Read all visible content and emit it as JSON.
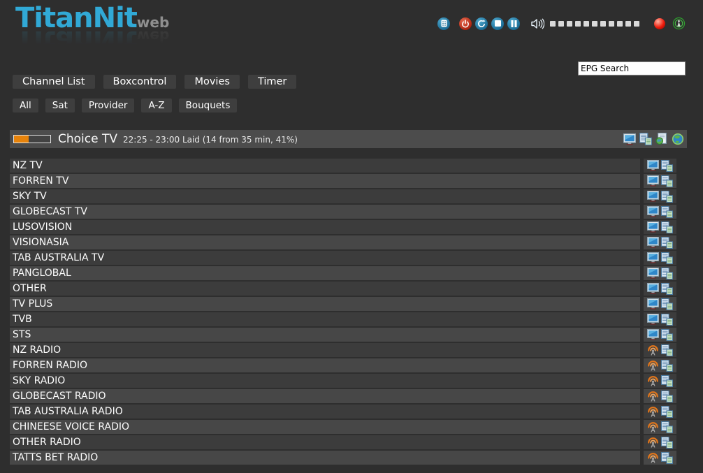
{
  "logo": {
    "title": "TitanNit",
    "suffix": "web"
  },
  "header_controls": {
    "icons": [
      "remote-icon",
      "power-icon",
      "restart-icon",
      "stop-icon",
      "pause-icon"
    ],
    "volume_icon": "speaker-icon",
    "volume_segments": 11,
    "record_icon": "record-ball-icon",
    "stream_icon": "stream-icon"
  },
  "search": {
    "value": "EPG Search"
  },
  "nav": {
    "items": [
      "Channel List",
      "Boxcontrol",
      "Movies",
      "Timer"
    ]
  },
  "filters": {
    "items": [
      "All",
      "Sat",
      "Provider",
      "A-Z",
      "Bouquets"
    ]
  },
  "now_playing": {
    "channel": "Choice TV",
    "epg_info": "22:25 - 23:00 Laid (14 from 35 min, 41%)",
    "progress_percent": 41,
    "icons": [
      "tv-icon",
      "epg-list-icon",
      "epg-page-icon",
      "globe-icon"
    ]
  },
  "colors": {
    "accent_blue": "#31a9d6",
    "progress_orange": "#e8830a",
    "record_red": "#ee1c0c",
    "stream_green": "#3fae3f",
    "background": "#2e2e2e"
  },
  "channels": [
    {
      "name": "NZ TV",
      "type": "tv"
    },
    {
      "name": "FORREN TV",
      "type": "tv"
    },
    {
      "name": "SKY TV",
      "type": "tv"
    },
    {
      "name": "GLOBECAST TV",
      "type": "tv"
    },
    {
      "name": "LUSOVISION",
      "type": "tv"
    },
    {
      "name": "VISIONASIA",
      "type": "tv"
    },
    {
      "name": "TAB AUSTRALIA TV",
      "type": "tv"
    },
    {
      "name": "PANGLOBAL",
      "type": "tv"
    },
    {
      "name": "OTHER",
      "type": "tv"
    },
    {
      "name": "TV PLUS",
      "type": "tv"
    },
    {
      "name": "TVB",
      "type": "tv"
    },
    {
      "name": "STS",
      "type": "tv"
    },
    {
      "name": "NZ RADIO",
      "type": "radio"
    },
    {
      "name": "FORREN RADIO",
      "type": "radio"
    },
    {
      "name": "SKY RADIO",
      "type": "radio"
    },
    {
      "name": "GLOBECAST RADIO",
      "type": "radio"
    },
    {
      "name": "TAB AUSTRALIA RADIO",
      "type": "radio"
    },
    {
      "name": "CHINEESE VOICE RADIO",
      "type": "radio"
    },
    {
      "name": "OTHER RADIO",
      "type": "radio"
    },
    {
      "name": "TATTS BET RADIO",
      "type": "radio"
    }
  ]
}
